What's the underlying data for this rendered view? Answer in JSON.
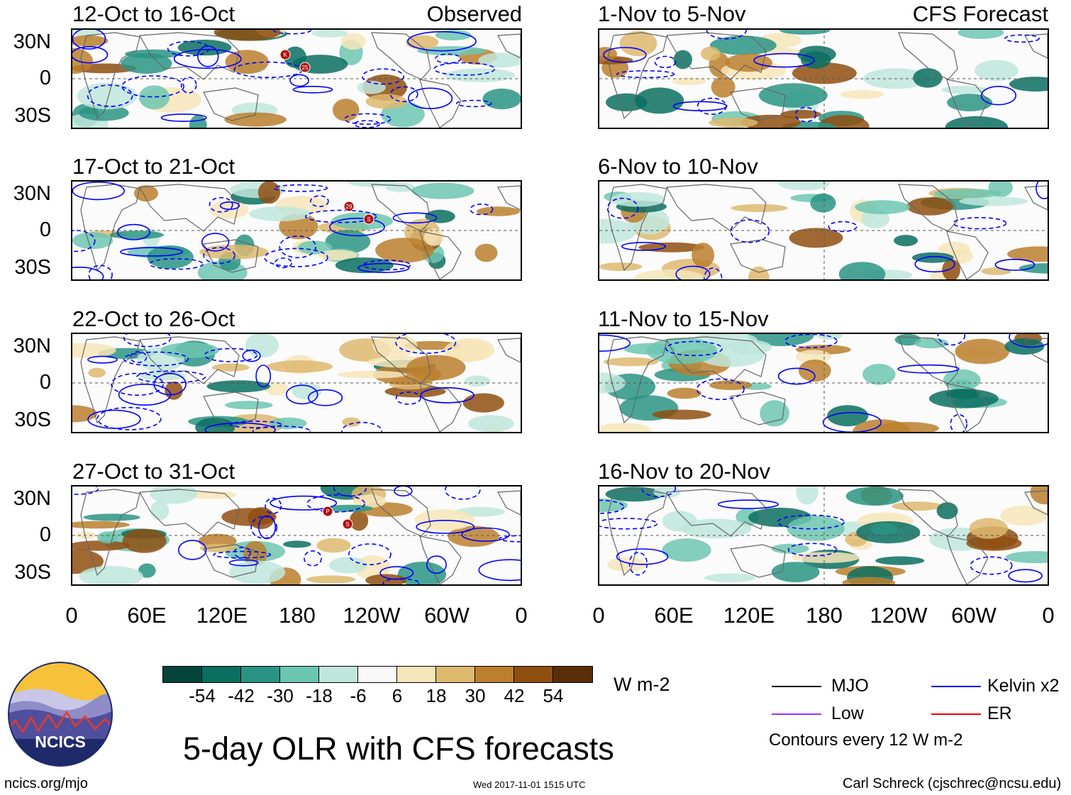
{
  "observed_label": "Observed",
  "forecast_label": "CFS Forecast",
  "observed_panels": [
    {
      "period": "12-Oct to 16-Oct",
      "storms": [
        "K",
        "25"
      ]
    },
    {
      "period": "17-Oct to 21-Oct",
      "storms": [
        "29",
        "S"
      ]
    },
    {
      "period": "22-Oct to 26-Oct",
      "storms": []
    },
    {
      "period": "27-Oct to 31-Oct",
      "storms": [
        "P",
        "S"
      ]
    }
  ],
  "forecast_panels": [
    {
      "period": "1-Nov to 5-Nov"
    },
    {
      "period": "6-Nov to 10-Nov"
    },
    {
      "period": "11-Nov to 15-Nov"
    },
    {
      "period": "16-Nov to 20-Nov"
    }
  ],
  "lat_ticks": [
    "30N",
    "0",
    "30S"
  ],
  "lon_ticks": [
    "0",
    "60E",
    "120E",
    "180",
    "120W",
    "60W",
    "0"
  ],
  "colorbar": {
    "labels": [
      "-54",
      "-42",
      "-30",
      "-18",
      "-6",
      "6",
      "18",
      "30",
      "42",
      "54"
    ],
    "colors": [
      "#05443a",
      "#0b6e60",
      "#2a9484",
      "#6dc6b0",
      "#bfe6dc",
      "#f8f8f8",
      "#f6e5b8",
      "#ddb96e",
      "#bb7f2e",
      "#8f4f10",
      "#5a2e08"
    ],
    "units": "W m-2"
  },
  "legend": [
    {
      "label": "MJO",
      "color": "#000000"
    },
    {
      "label": "Kelvin x2",
      "color": "#0000ff"
    },
    {
      "label": "Low",
      "color": "#9933ff"
    },
    {
      "label": "ER",
      "color": "#ee0000"
    }
  ],
  "contour_note": "Contours every 12 W m-2",
  "main_title": "5-day OLR with CFS forecasts",
  "logo_text": "NCICS",
  "footer": {
    "url": "ncics.org/mjo",
    "timestamp": "Wed 2017-11-01 1515 UTC",
    "credit": "Carl Schreck (cjschrec@ncsu.edu)"
  }
}
